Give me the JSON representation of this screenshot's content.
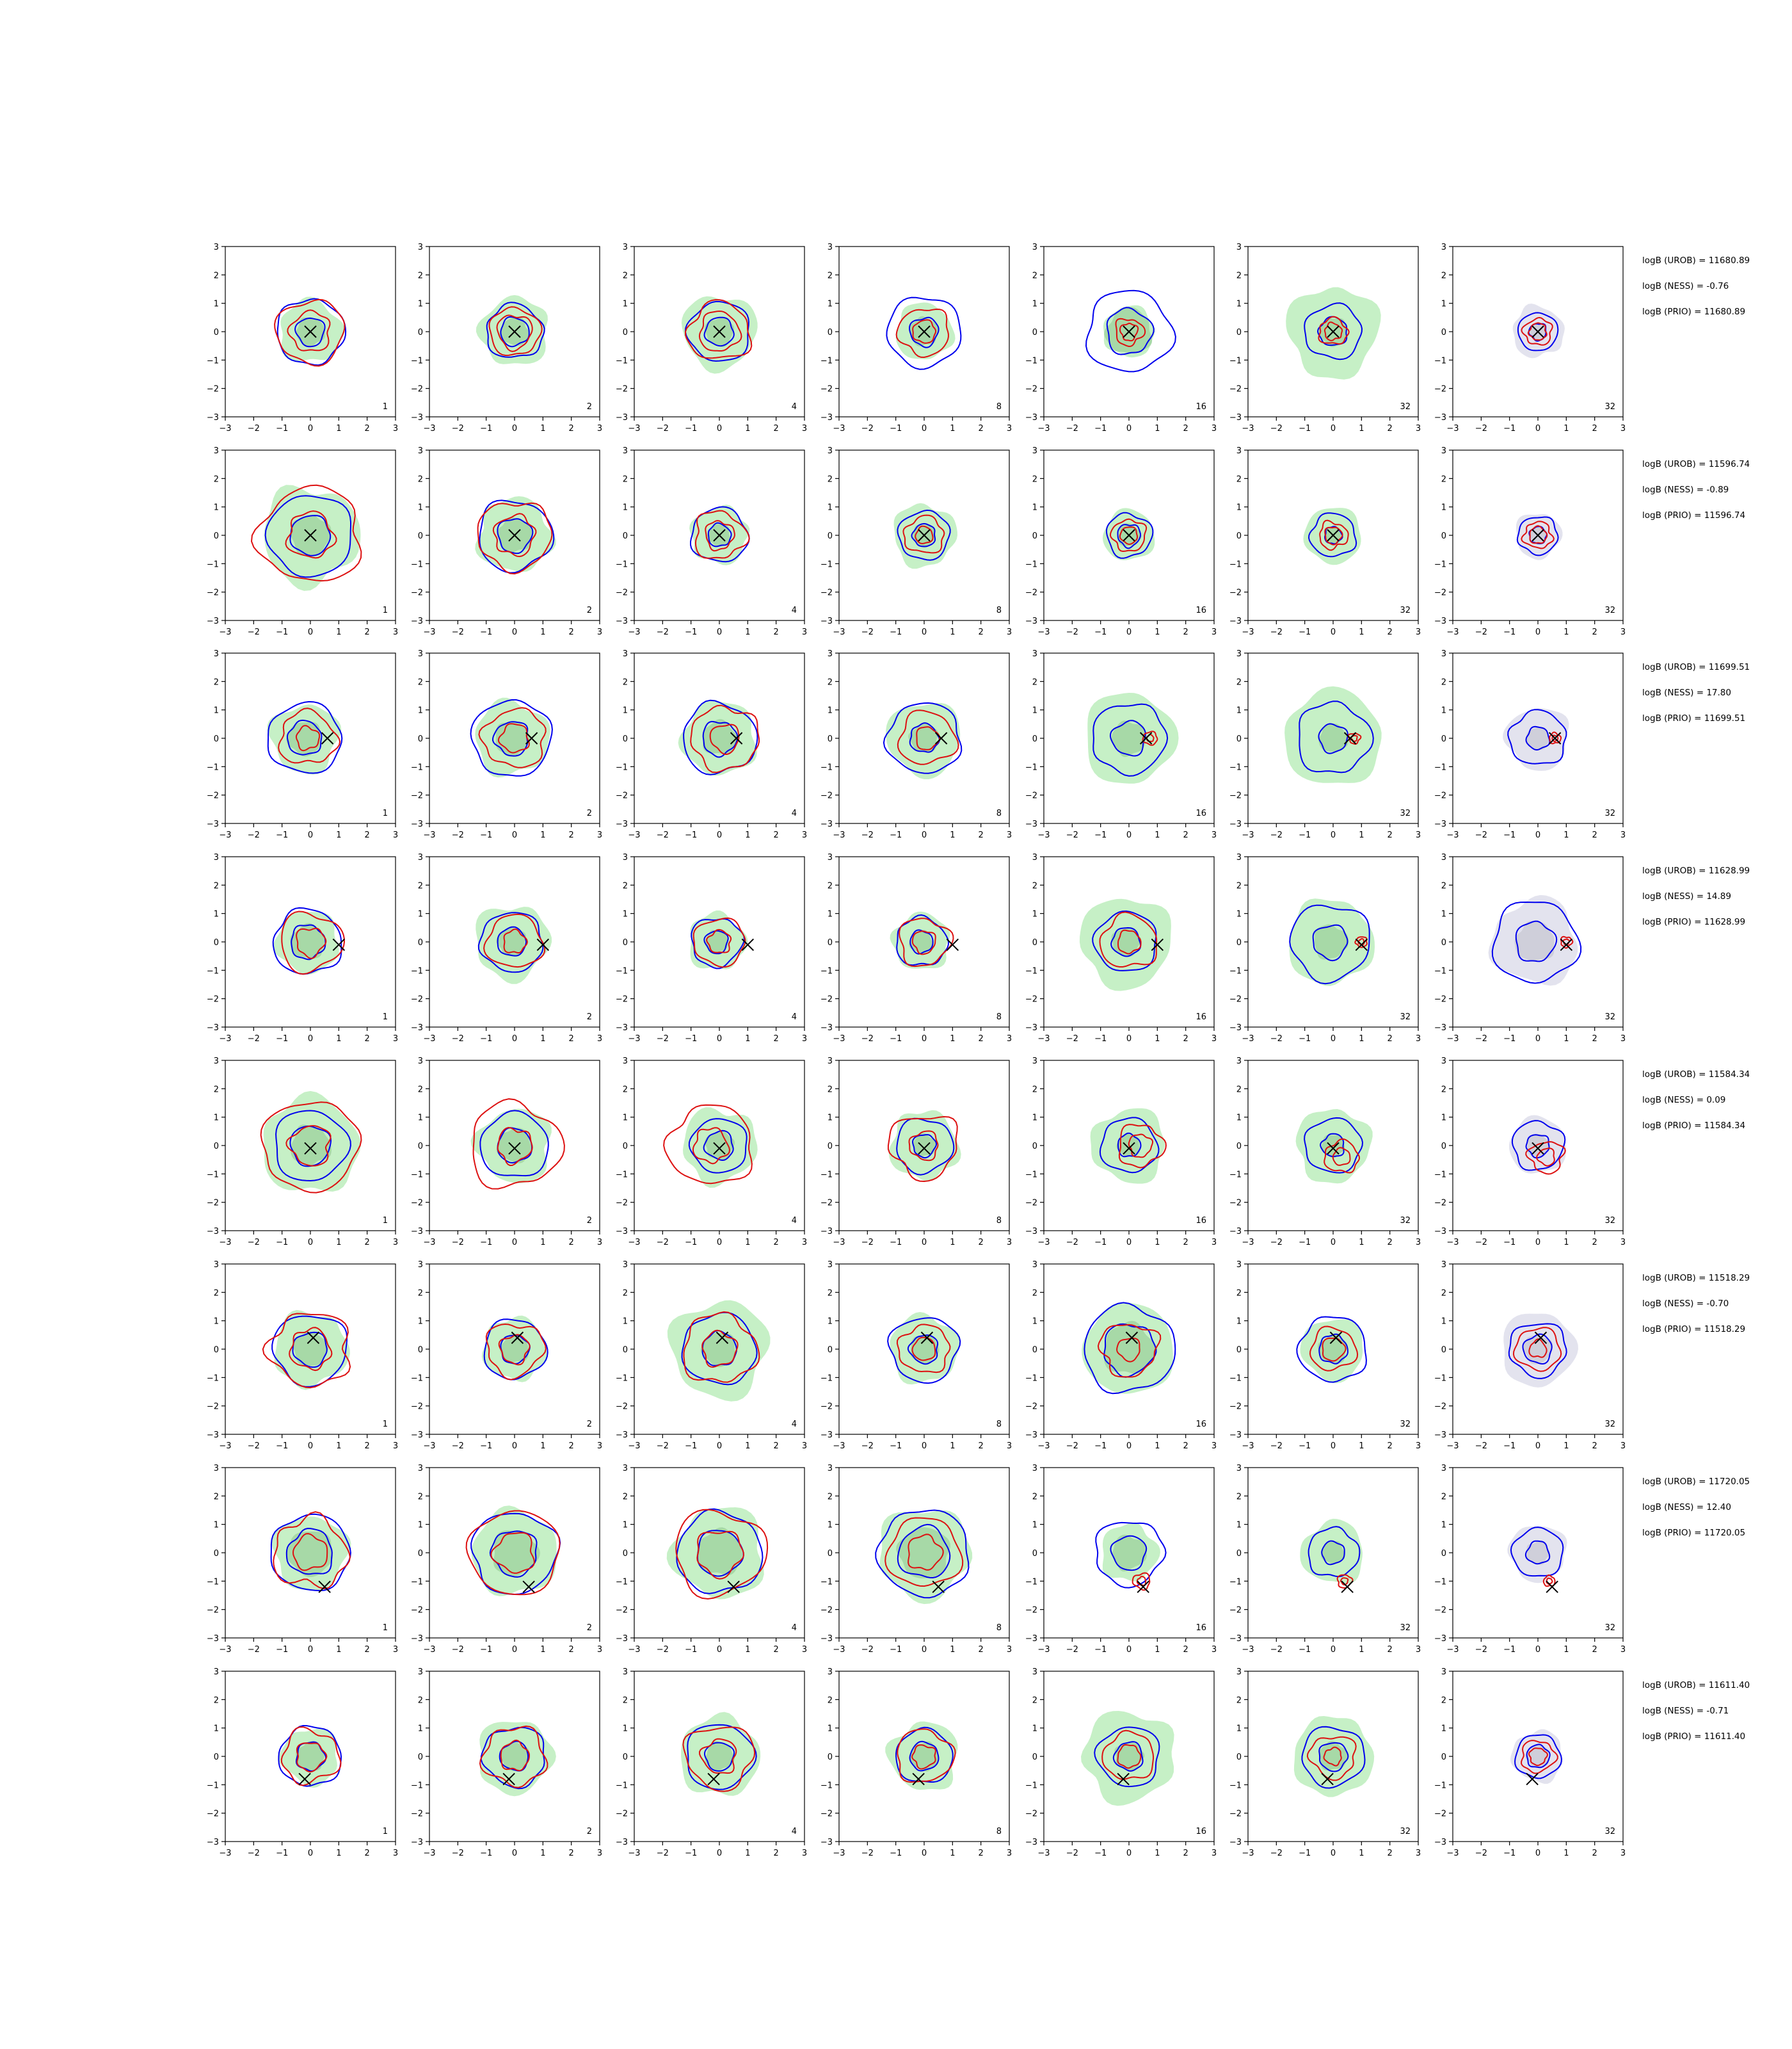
{
  "chart_data": {
    "type": "contour-grid",
    "rows": 8,
    "cols": 7,
    "xlim": [
      -3,
      3
    ],
    "ylim": [
      -3,
      3
    ],
    "xticks": [
      "−3",
      "−2",
      "−1",
      "0",
      "1",
      "2",
      "3"
    ],
    "yticks": [
      "3",
      "2",
      "1",
      "0",
      "−1",
      "−2",
      "−3"
    ],
    "column_labels": [
      "1",
      "2",
      "4",
      "8",
      "16",
      "32",
      "32"
    ],
    "colors": {
      "contour_a": "#0000ee",
      "contour_b": "#dd1111",
      "fill": "#c6f0c6",
      "fill_inner": "#a7d9a7",
      "fill_grey": "#e3e3ee",
      "fill_grey_inner": "#cfcfda",
      "marker": "#000000"
    },
    "panels_rows": [
      {
        "stats": [
          "logB (UROB) = 11680.89",
          "logB (NESS) = -0.76",
          "logB (PRIO) = 11680.89"
        ],
        "marker": [
          0.0,
          0.0
        ],
        "panels": [
          {
            "fill": 1.1,
            "a": [
              1.2,
              0.5
            ],
            "b": [
              1.2,
              0.7
            ]
          },
          {
            "fill": 1.2,
            "a": [
              1.0,
              0.5
            ],
            "b": [
              0.9,
              0.6
            ]
          },
          {
            "fill": 1.3,
            "a": [
              1.1,
              0.5
            ],
            "b": [
              1.1,
              0.7
            ]
          },
          {
            "fill": 1.0,
            "a": [
              1.3,
              0.5
            ],
            "b": [
              0.9,
              0.4
            ]
          },
          {
            "fill": 0.9,
            "a": [
              1.5,
              0.8
            ],
            "b": [
              0.5,
              0.3
            ]
          },
          {
            "fill": 1.6,
            "a": [
              1.0,
              0.5
            ],
            "b": [
              0.5,
              0.3
            ]
          },
          {
            "fill": 0.9,
            "grey": true,
            "a": [
              0.7,
              0.3
            ],
            "b": [
              0.5,
              0.3
            ]
          }
        ]
      },
      {
        "stats": [
          "logB (UROB) = 11596.74",
          "logB (NESS) = -0.89",
          "logB (PRIO) = 11596.74"
        ],
        "marker": [
          0.0,
          0.0
        ],
        "panels": [
          {
            "fill": 1.7,
            "a": [
              1.5,
              0.7
            ],
            "b": [
              1.8,
              0.8
            ]
          },
          {
            "fill": 1.3,
            "a": [
              1.3,
              0.6
            ],
            "b": [
              1.3,
              0.7
            ]
          },
          {
            "fill": 1.0,
            "a": [
              1.0,
              0.4
            ],
            "b": [
              0.9,
              0.5
            ]
          },
          {
            "fill": 1.1,
            "a": [
              0.9,
              0.4
            ],
            "b": [
              0.7,
              0.3
            ]
          },
          {
            "fill": 0.9,
            "a": [
              0.8,
              0.4
            ],
            "b": [
              0.6,
              0.3
            ]
          },
          {
            "fill": 1.0,
            "a": [
              0.8,
              0.3
            ],
            "b": [
              0.5,
              0.3
            ]
          },
          {
            "fill": 0.8,
            "grey": true,
            "a": [
              0.7,
              0.3
            ],
            "b": [
              0.5,
              0.3
            ]
          }
        ]
      },
      {
        "stats": [
          "logB (UROB) = 11699.51",
          "logB (NESS) = 17.80",
          "logB (PRIO) = 11699.51"
        ],
        "marker": [
          0.6,
          0.0
        ],
        "panels": [
          {
            "fill": 1.2,
            "a": [
              1.3,
              0.6
            ],
            "b": [
              1.0,
              0.4
            ],
            "fx": -0.2,
            "bx": -0.1
          },
          {
            "fill": 1.3,
            "a": [
              1.4,
              0.6
            ],
            "b": [
              1.1,
              0.5
            ],
            "fx": -0.1,
            "bx": 0.0
          },
          {
            "fill": 1.3,
            "a": [
              1.3,
              0.6
            ],
            "b": [
              1.2,
              0.5
            ],
            "fx": 0.0,
            "bx": 0.2
          },
          {
            "fill": 1.3,
            "a": [
              1.3,
              0.5
            ],
            "b": [
              1.0,
              0.4
            ],
            "fx": 0.0,
            "bx": 0.1
          },
          {
            "fill": 1.6,
            "a": [
              1.3,
              0.6
            ],
            "b": [
              0.25,
              0.12
            ],
            "fx": 0.0,
            "bx": 0.75
          },
          {
            "fill": 1.7,
            "a": [
              1.3,
              0.5
            ],
            "b": [
              0.2,
              0.1
            ],
            "fx": 0.0,
            "bx": 0.75
          },
          {
            "fill": 1.1,
            "grey": true,
            "a": [
              1.0,
              0.4
            ],
            "b": [
              0.2,
              0.1
            ],
            "fx": 0.0,
            "bx": 0.6
          }
        ]
      },
      {
        "stats": [
          "logB (UROB) = 11628.99",
          "logB (NESS) = 14.89",
          "logB (PRIO) = 11628.99"
        ],
        "marker": [
          1.0,
          -0.1
        ],
        "panels": [
          {
            "fill": 1.1,
            "a": [
              1.2,
              0.6
            ],
            "b": [
              1.1,
              0.5
            ],
            "fx": -0.1,
            "bx": 0.0
          },
          {
            "fill": 1.3,
            "a": [
              1.1,
              0.5
            ],
            "b": [
              1.0,
              0.4
            ],
            "fx": -0.1,
            "bx": 0.0
          },
          {
            "fill": 1.0,
            "a": [
              0.9,
              0.4
            ],
            "b": [
              0.9,
              0.4
            ],
            "fx": -0.1,
            "bx": 0.0
          },
          {
            "fill": 1.0,
            "a": [
              0.9,
              0.4
            ],
            "b": [
              0.9,
              0.4
            ],
            "fx": -0.1,
            "bx": 0.0
          },
          {
            "fill": 1.6,
            "a": [
              1.1,
              0.5
            ],
            "b": [
              1.0,
              0.4
            ],
            "fx": -0.1,
            "bx": 0.0
          },
          {
            "fill": 1.5,
            "a": [
              1.4,
              0.6
            ],
            "b": [
              0.2,
              0.1
            ],
            "fx": -0.1,
            "bx": 1.0
          },
          {
            "fill": 1.5,
            "grey": true,
            "a": [
              1.5,
              0.7
            ],
            "b": [
              0.2,
              0.1
            ],
            "fx": -0.1,
            "bx": 1.0
          }
        ]
      },
      {
        "stats": [
          "logB (UROB) = 11584.34",
          "logB (NESS) = 0.09",
          "logB (PRIO) = 11584.34"
        ],
        "marker": [
          0.0,
          -0.1
        ],
        "panels": [
          {
            "fill": 1.7,
            "a": [
              1.3,
              0.7
            ],
            "b": [
              1.7,
              0.7
            ]
          },
          {
            "fill": 1.3,
            "a": [
              1.2,
              0.6
            ],
            "b": [
              1.6,
              0.6
            ]
          },
          {
            "fill": 1.3,
            "a": [
              1.0,
              0.5
            ],
            "b": [
              1.5,
              0.6
            ],
            "bx": -0.3
          },
          {
            "fill": 1.2,
            "a": [
              1.0,
              0.4
            ],
            "b": [
              1.2,
              0.5
            ],
            "bx": 0.0
          },
          {
            "fill": 1.3,
            "a": [
              1.0,
              0.4
            ],
            "b": [
              0.8,
              0.4
            ],
            "bx": 0.4
          },
          {
            "fill": 1.3,
            "a": [
              1.0,
              0.4
            ],
            "b": [
              0.6,
              0.3
            ],
            "bx": 0.3,
            "by": -0.4
          },
          {
            "fill": 1.0,
            "grey": true,
            "a": [
              0.9,
              0.4
            ],
            "b": [
              0.6,
              0.3
            ],
            "bx": 0.3,
            "by": -0.4
          }
        ]
      },
      {
        "stats": [
          "logB (UROB) = 11518.29",
          "logB (NESS) = -0.70",
          "logB (PRIO) = 11518.29"
        ],
        "marker": [
          0.1,
          0.4
        ],
        "panels": [
          {
            "fill": 1.3,
            "a": [
              1.3,
              0.6
            ],
            "b": [
              1.4,
              0.7
            ]
          },
          {
            "fill": 1.1,
            "a": [
              1.1,
              0.5
            ],
            "b": [
              1.0,
              0.5
            ]
          },
          {
            "fill": 1.7,
            "a": [
              1.3,
              0.6
            ],
            "b": [
              1.3,
              0.6
            ]
          },
          {
            "fill": 1.2,
            "a": [
              1.2,
              0.5
            ],
            "b": [
              0.9,
              0.4
            ]
          },
          {
            "fill": 1.6,
            "a": [
              1.6,
              0.9
            ],
            "b": [
              1.0,
              0.4
            ]
          },
          {
            "fill": 1.1,
            "a": [
              1.2,
              0.5
            ],
            "b": [
              0.8,
              0.4
            ]
          },
          {
            "fill": 1.3,
            "grey": true,
            "a": [
              1.0,
              0.5
            ],
            "b": [
              0.8,
              0.3
            ]
          }
        ]
      },
      {
        "stats": [
          "logB (UROB) = 11720.05",
          "logB (NESS) = 12.40",
          "logB (PRIO) = 11720.05"
        ],
        "marker": [
          0.5,
          -1.2
        ],
        "panels": [
          {
            "fill": 1.3,
            "a": [
              1.4,
              0.8
            ],
            "b": [
              1.3,
              0.6
            ]
          },
          {
            "fill": 1.5,
            "a": [
              1.5,
              0.8
            ],
            "b": [
              1.6,
              0.7
            ]
          },
          {
            "fill": 1.6,
            "a": [
              1.5,
              0.8
            ],
            "b": [
              1.6,
              0.8
            ]
          },
          {
            "fill": 1.6,
            "a": [
              1.6,
              0.9
            ],
            "b": [
              1.3,
              0.6
            ]
          },
          {
            "fill": 1.0,
            "a": [
              1.2,
              0.6
            ],
            "b": [
              0.3,
              0.15
            ],
            "bx": 0.45,
            "by": -1.0
          },
          {
            "fill": 1.1,
            "a": [
              0.9,
              0.4
            ],
            "b": [
              0.25,
              0.12
            ],
            "bx": 0.4,
            "by": -1.0
          },
          {
            "fill": 1.0,
            "grey": true,
            "a": [
              0.9,
              0.4
            ],
            "b": [
              0.2,
              0.1
            ],
            "bx": 0.4,
            "by": -1.0
          }
        ]
      },
      {
        "stats": [
          "logB (UROB) = 11611.40",
          "logB (NESS) = -0.71",
          "logB (PRIO) = 11611.40"
        ],
        "marker": [
          -0.2,
          -0.8
        ],
        "panels": [
          {
            "fill": 1.0,
            "a": [
              1.1,
              0.5
            ],
            "b": [
              1.0,
              0.5
            ]
          },
          {
            "fill": 1.3,
            "a": [
              1.1,
              0.5
            ],
            "b": [
              1.1,
              0.5
            ]
          },
          {
            "fill": 1.4,
            "a": [
              1.2,
              0.5
            ],
            "b": [
              1.2,
              0.6
            ]
          },
          {
            "fill": 1.2,
            "a": [
              1.0,
              0.5
            ],
            "b": [
              1.0,
              0.4
            ]
          },
          {
            "fill": 1.6,
            "a": [
              1.1,
              0.5
            ],
            "b": [
              0.9,
              0.4
            ]
          },
          {
            "fill": 1.4,
            "a": [
              1.1,
              0.5
            ],
            "b": [
              0.8,
              0.3
            ]
          },
          {
            "fill": 0.9,
            "grey": true,
            "a": [
              0.8,
              0.4
            ],
            "b": [
              0.6,
              0.3
            ]
          }
        ]
      }
    ]
  }
}
